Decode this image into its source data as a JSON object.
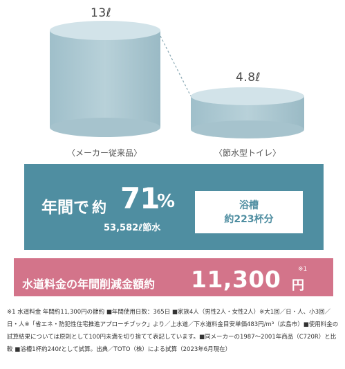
{
  "comparison": {
    "conventional": {
      "volume": "13ℓ",
      "label": "〈メーカー従来品〉"
    },
    "water_saving": {
      "volume": "4.8ℓ",
      "label": "〈節水型トイレ〉"
    }
  },
  "annual_stat": {
    "prefix": "年間で",
    "approx": "約",
    "percent": "71",
    "percent_unit": "%",
    "liters_saved": "53,582ℓ節水",
    "bathtub_line1": "浴槽",
    "bathtub_line2": "約223杯分",
    "box_color": "#4f8ea1"
  },
  "savings": {
    "label": "水道料金の年間削減金額約",
    "amount": "11,300",
    "unit": "円",
    "note_mark": "※1",
    "bar_color": "#d3748a"
  },
  "footnote": "※1 水道料金 年間約11,300円の節約 ■年間使用日数：365日 ■家族4人（男性2人・女性2人）※大1回／日・人、小3回／日・人※「省エネ・防犯性住宅推進アプローチブック」より／上水道／下水道料金目安単価483円/m³（広島市）■使用料金の試算結果については原則として100円未満を切り捨てて表記しています。■同メーカーの1987〜2001年商品（C720R）と比較 ■浴槽1杯約240ℓとして試算。出典／TOTO（株）による試算（2023年6月現在）"
}
